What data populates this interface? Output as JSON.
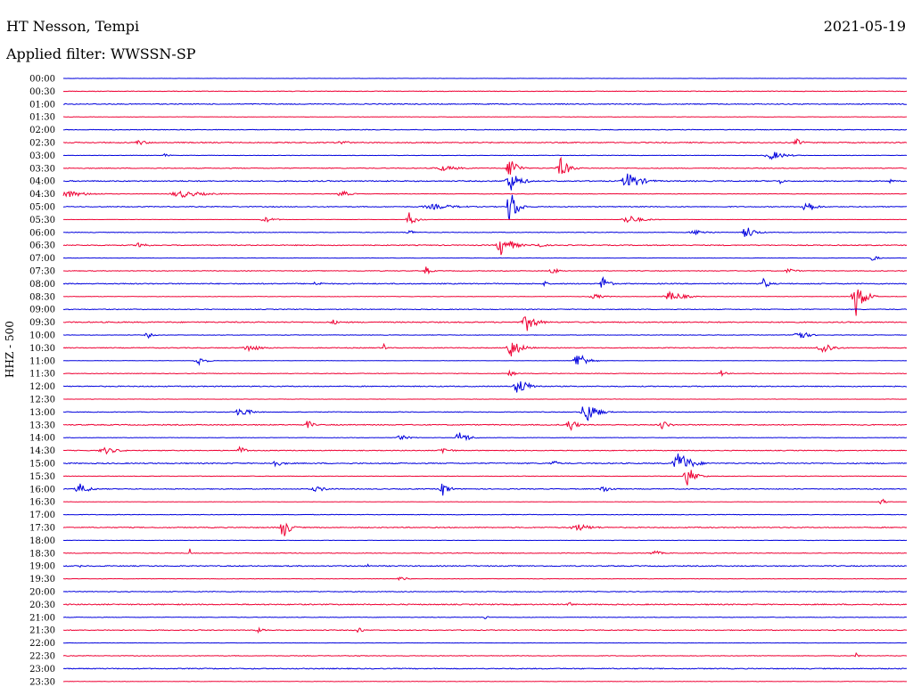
{
  "header": {
    "station": "HT Nesson, Tempi",
    "date": "2021-05-19",
    "filter": "Applied filter: WWSSN-SP"
  },
  "colors": {
    "even_trace": "#0000dd",
    "odd_trace": "#ee0033",
    "background": "#ffffff",
    "text": "#000000"
  },
  "chart_data": {
    "type": "line",
    "title": "HT Nesson, Tempi",
    "ylabel": "HHZ - 500",
    "xlabel": "",
    "grid": false,
    "legend": "none",
    "traces": [
      {
        "time": "00:00",
        "color": "even",
        "events": []
      },
      {
        "time": "00:30",
        "color": "odd",
        "events": []
      },
      {
        "time": "01:00",
        "color": "even",
        "events": []
      },
      {
        "time": "01:30",
        "color": "odd",
        "events": []
      },
      {
        "time": "02:00",
        "color": "even",
        "events": []
      },
      {
        "time": "02:30",
        "color": "odd",
        "events": [
          [
            0.09,
            3,
            30
          ],
          [
            0.33,
            3,
            25
          ],
          [
            0.87,
            4,
            22
          ]
        ]
      },
      {
        "time": "03:00",
        "color": "even",
        "events": [
          [
            0.84,
            5,
            40
          ],
          [
            0.12,
            2,
            15
          ]
        ]
      },
      {
        "time": "03:30",
        "color": "odd",
        "events": [
          [
            0.53,
            16,
            20
          ],
          [
            0.59,
            12,
            25
          ],
          [
            0.45,
            3,
            60
          ]
        ]
      },
      {
        "time": "04:00",
        "color": "even",
        "events": [
          [
            0.53,
            12,
            30
          ],
          [
            0.67,
            10,
            40
          ],
          [
            0.85,
            4,
            10
          ],
          [
            0.98,
            4,
            10
          ]
        ]
      },
      {
        "time": "04:30",
        "color": "odd",
        "events": [
          [
            0.0,
            5,
            60
          ],
          [
            0.14,
            4,
            70
          ],
          [
            0.33,
            4,
            25
          ]
        ]
      },
      {
        "time": "05:00",
        "color": "even",
        "events": [
          [
            0.53,
            24,
            20
          ],
          [
            0.88,
            9,
            25
          ],
          [
            0.44,
            3,
            80
          ]
        ]
      },
      {
        "time": "05:30",
        "color": "odd",
        "events": [
          [
            0.41,
            8,
            20
          ],
          [
            0.67,
            5,
            40
          ],
          [
            0.24,
            3,
            30
          ]
        ]
      },
      {
        "time": "06:00",
        "color": "even",
        "events": [
          [
            0.81,
            8,
            25
          ],
          [
            0.41,
            3,
            20
          ],
          [
            0.75,
            3,
            40
          ]
        ]
      },
      {
        "time": "06:30",
        "color": "odd",
        "events": [
          [
            0.09,
            5,
            20
          ],
          [
            0.52,
            13,
            30
          ],
          [
            0.56,
            4,
            25
          ]
        ]
      },
      {
        "time": "07:00",
        "color": "even",
        "events": [
          [
            0.96,
            4,
            15
          ]
        ]
      },
      {
        "time": "07:30",
        "color": "odd",
        "events": [
          [
            0.43,
            5,
            15
          ],
          [
            0.58,
            4,
            20
          ],
          [
            0.86,
            3,
            25
          ]
        ]
      },
      {
        "time": "08:00",
        "color": "even",
        "events": [
          [
            0.64,
            12,
            15
          ],
          [
            0.83,
            6,
            20
          ],
          [
            0.57,
            4,
            10
          ],
          [
            0.3,
            3,
            20
          ]
        ]
      },
      {
        "time": "08:30",
        "color": "odd",
        "events": [
          [
            0.94,
            22,
            25
          ],
          [
            0.72,
            6,
            40
          ],
          [
            0.63,
            3,
            30
          ]
        ]
      },
      {
        "time": "09:00",
        "color": "even",
        "events": []
      },
      {
        "time": "09:30",
        "color": "odd",
        "events": [
          [
            0.55,
            10,
            30
          ],
          [
            0.32,
            3,
            20
          ]
        ]
      },
      {
        "time": "10:00",
        "color": "even",
        "events": [
          [
            0.87,
            8,
            25
          ],
          [
            0.1,
            4,
            15
          ]
        ]
      },
      {
        "time": "10:30",
        "color": "odd",
        "events": [
          [
            0.53,
            12,
            30
          ],
          [
            0.9,
            8,
            30
          ],
          [
            0.22,
            4,
            40
          ],
          [
            0.38,
            10,
            4
          ]
        ]
      },
      {
        "time": "11:00",
        "color": "even",
        "events": [
          [
            0.61,
            12,
            25
          ],
          [
            0.16,
            6,
            20
          ]
        ]
      },
      {
        "time": "11:30",
        "color": "odd",
        "events": [
          [
            0.53,
            4,
            15
          ],
          [
            0.78,
            4,
            15
          ]
        ]
      },
      {
        "time": "12:00",
        "color": "even",
        "events": [
          [
            0.54,
            10,
            30
          ]
        ]
      },
      {
        "time": "12:30",
        "color": "odd",
        "events": []
      },
      {
        "time": "13:00",
        "color": "even",
        "events": [
          [
            0.62,
            14,
            30
          ],
          [
            0.21,
            6,
            30
          ]
        ]
      },
      {
        "time": "13:30",
        "color": "odd",
        "events": [
          [
            0.6,
            9,
            20
          ],
          [
            0.29,
            6,
            15
          ],
          [
            0.71,
            6,
            20
          ]
        ]
      },
      {
        "time": "14:00",
        "color": "even",
        "events": [
          [
            0.47,
            8,
            25
          ],
          [
            0.4,
            3,
            30
          ]
        ]
      },
      {
        "time": "14:30",
        "color": "odd",
        "events": [
          [
            0.05,
            4,
            40
          ],
          [
            0.21,
            5,
            20
          ],
          [
            0.45,
            4,
            25
          ]
        ]
      },
      {
        "time": "15:00",
        "color": "even",
        "events": [
          [
            0.73,
            14,
            35
          ],
          [
            0.58,
            5,
            15
          ],
          [
            0.25,
            4,
            30
          ]
        ]
      },
      {
        "time": "15:30",
        "color": "odd",
        "events": [
          [
            0.74,
            12,
            25
          ]
        ]
      },
      {
        "time": "16:00",
        "color": "even",
        "events": [
          [
            0.02,
            6,
            30
          ],
          [
            0.45,
            8,
            20
          ],
          [
            0.64,
            4,
            30
          ],
          [
            0.3,
            3,
            40
          ]
        ]
      },
      {
        "time": "16:30",
        "color": "odd",
        "events": [
          [
            0.97,
            4,
            15
          ]
        ]
      },
      {
        "time": "17:00",
        "color": "even",
        "events": []
      },
      {
        "time": "17:30",
        "color": "odd",
        "events": [
          [
            0.26,
            14,
            20
          ],
          [
            0.61,
            4,
            50
          ]
        ]
      },
      {
        "time": "18:00",
        "color": "even",
        "events": []
      },
      {
        "time": "18:30",
        "color": "odd",
        "events": [
          [
            0.7,
            4,
            20
          ],
          [
            0.15,
            5,
            3
          ],
          [
            0.52,
            5,
            3
          ]
        ]
      },
      {
        "time": "19:00",
        "color": "even",
        "events": [
          [
            0.36,
            8,
            4
          ],
          [
            0.02,
            3,
            3
          ]
        ]
      },
      {
        "time": "19:30",
        "color": "odd",
        "events": [
          [
            0.4,
            3,
            20
          ]
        ]
      },
      {
        "time": "20:00",
        "color": "even",
        "events": []
      },
      {
        "time": "20:30",
        "color": "odd",
        "events": [
          [
            0.6,
            5,
            10
          ]
        ]
      },
      {
        "time": "21:00",
        "color": "even",
        "events": [
          [
            0.5,
            3,
            8
          ]
        ]
      },
      {
        "time": "21:30",
        "color": "odd",
        "events": [
          [
            0.35,
            5,
            12
          ],
          [
            0.23,
            3,
            20
          ]
        ]
      },
      {
        "time": "22:00",
        "color": "even",
        "events": []
      },
      {
        "time": "22:30",
        "color": "odd",
        "events": [
          [
            0.35,
            3,
            6
          ],
          [
            0.94,
            3,
            8
          ]
        ]
      },
      {
        "time": "23:00",
        "color": "even",
        "events": []
      },
      {
        "time": "23:30",
        "color": "odd",
        "events": []
      }
    ]
  }
}
